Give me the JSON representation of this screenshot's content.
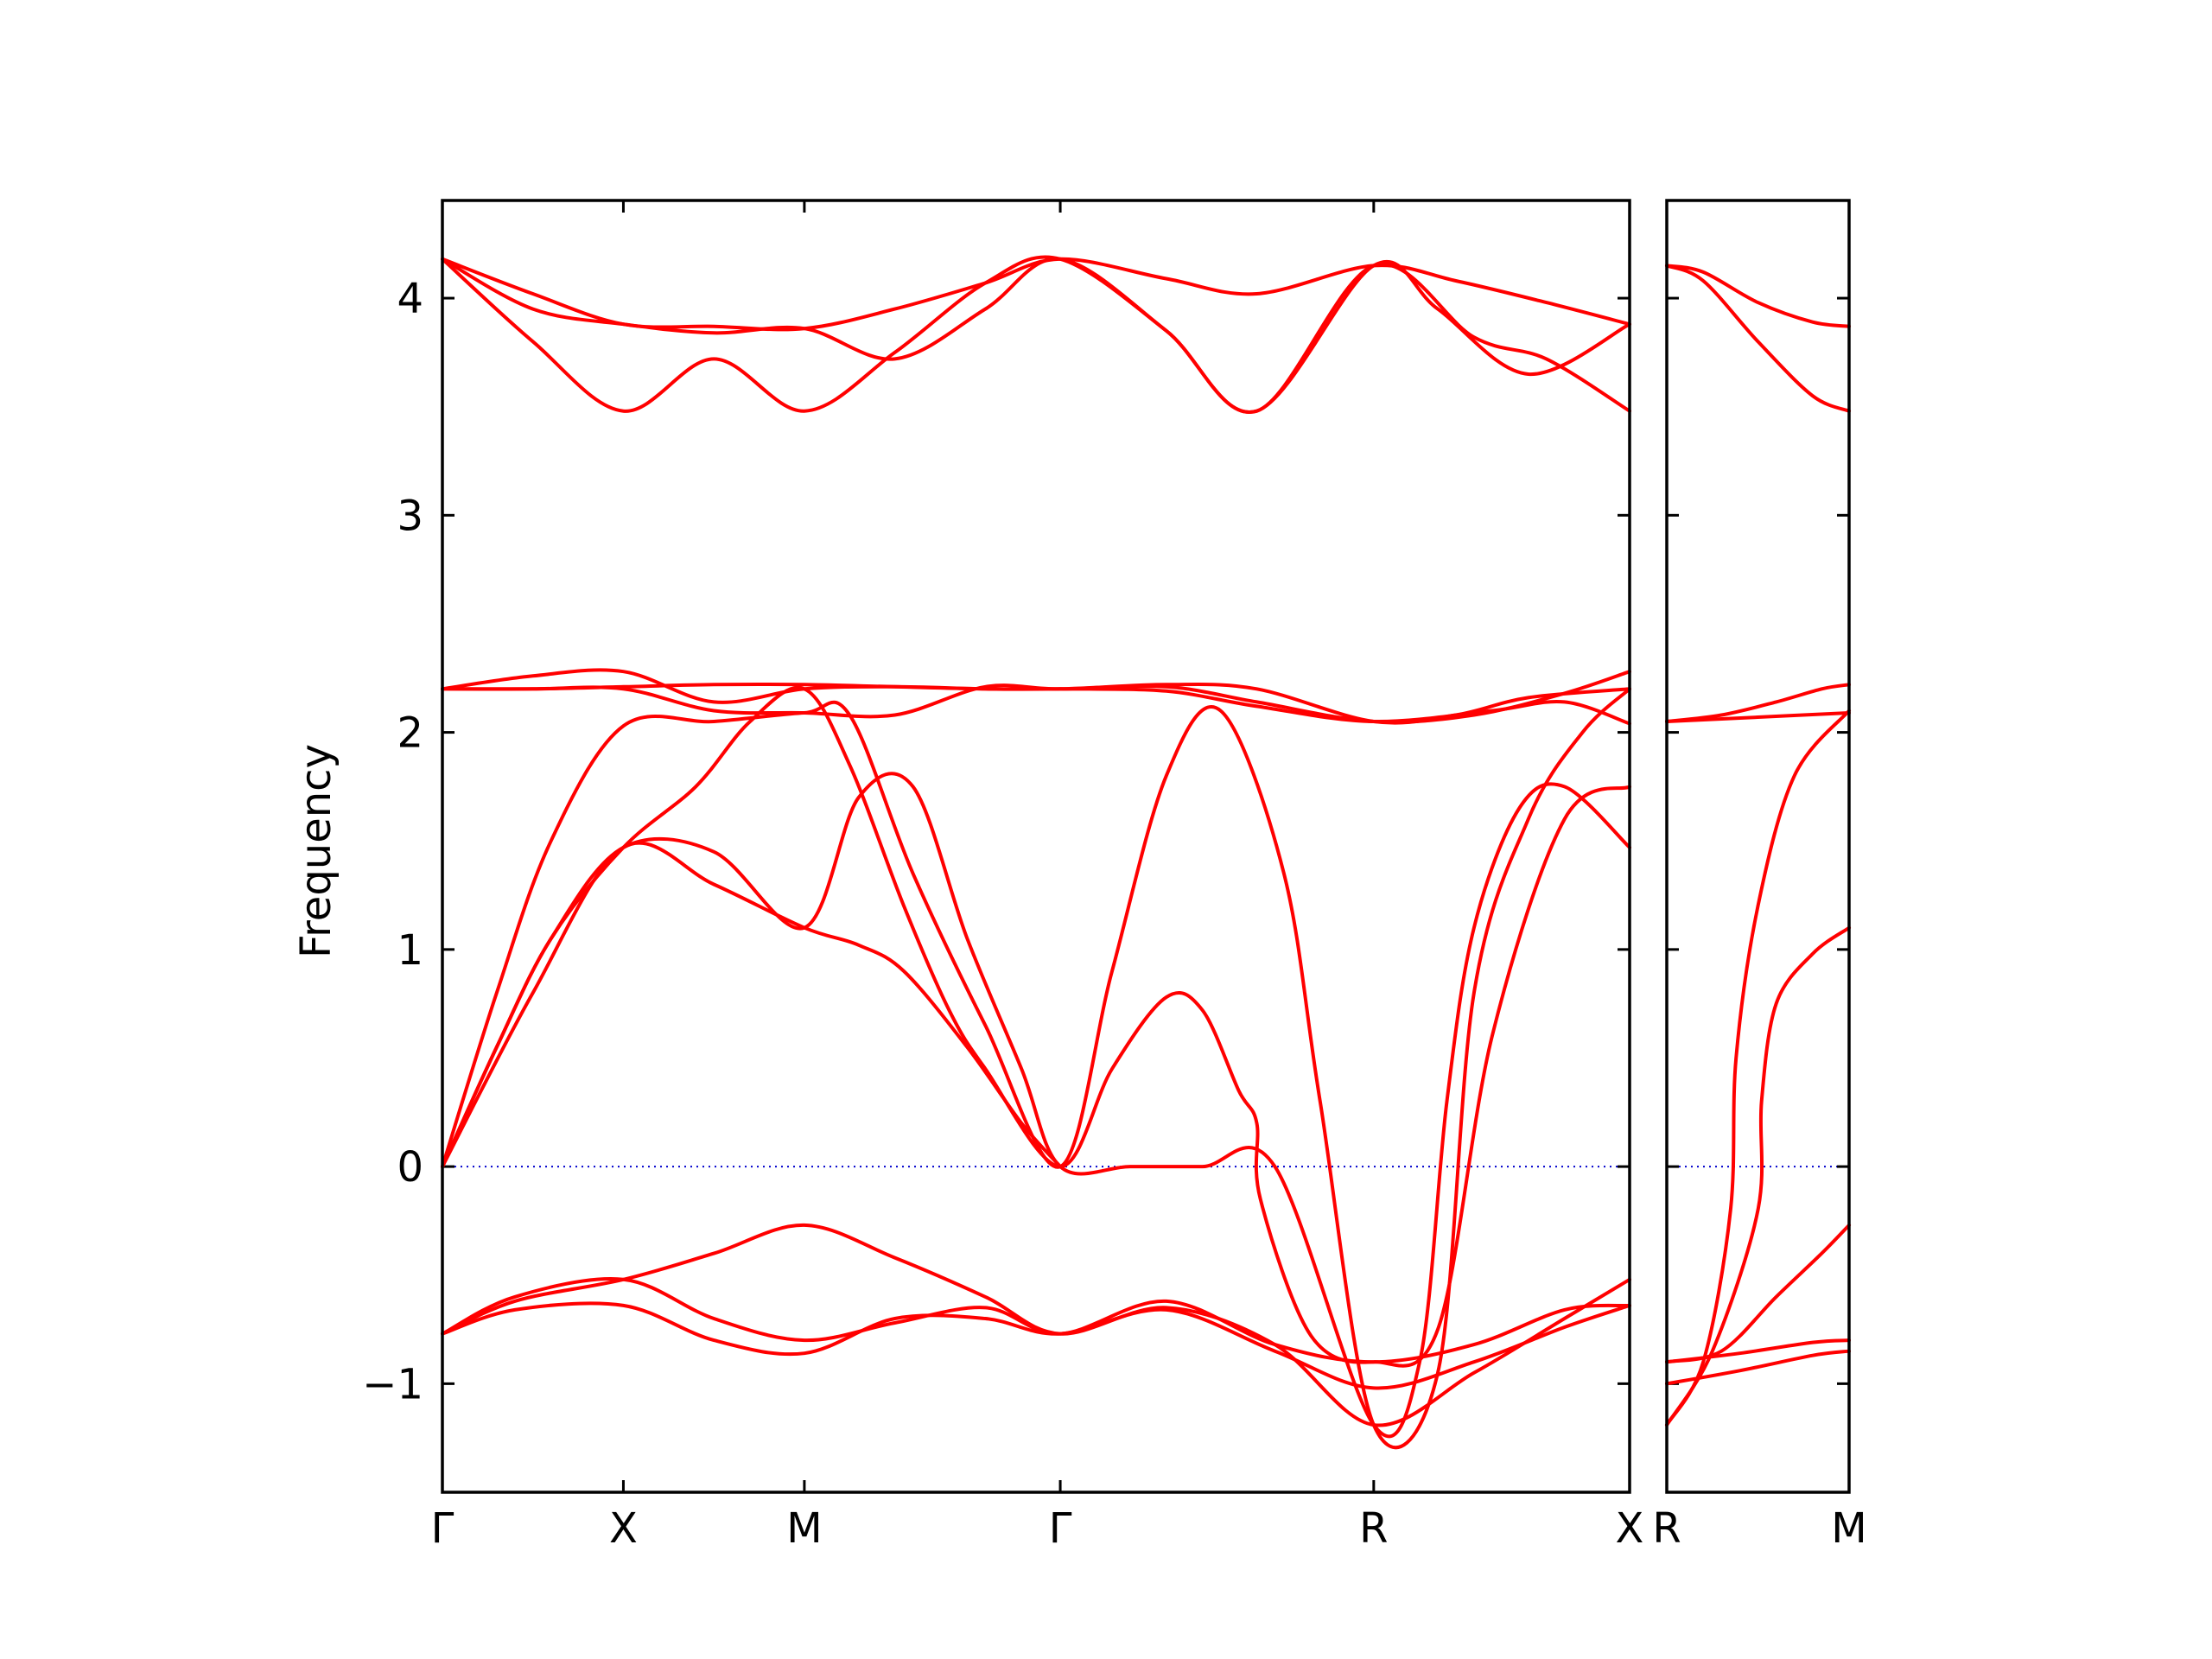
{
  "chart_data": {
    "type": "line",
    "title": "",
    "ylabel": "Frequency",
    "xlabel": "",
    "ylim": [
      -1.5,
      4.45
    ],
    "y_ticks": [
      -1,
      0,
      1,
      2,
      3,
      4
    ],
    "y_tick_labels": [
      "−1",
      "0",
      "1",
      "2",
      "3",
      "4"
    ],
    "grid": false,
    "legend": "none",
    "colors": {
      "bands": "#ff0000",
      "zero_line": "#0000cc"
    },
    "panels": [
      {
        "name": "main",
        "path_labels": [
          "Γ",
          "X",
          "M",
          "Γ",
          "R",
          "X"
        ],
        "path_positions": [
          0,
          1,
          2,
          3.414,
          5.146,
          6.56
        ],
        "xlim": [
          0,
          6.56
        ],
        "series": [
          {
            "x": [
              0,
              0.5,
              1,
              1.5,
              2,
              2.5,
              3,
              3.414,
              4,
              4.5,
              5.146,
              5.6,
              6.1,
              6.56
            ],
            "y": [
              4.18,
              4.02,
              3.88,
              3.87,
              3.86,
              3.95,
              4.07,
              4.18,
              4.09,
              4.02,
              4.15,
              4.08,
              3.98,
              3.88
            ]
          },
          {
            "x": [
              0,
              0.5,
              1,
              1.5,
              2,
              2.5,
              3,
              3.414,
              4,
              4.5,
              5.146,
              5.7,
              6.1,
              6.56
            ],
            "y": [
              4.18,
              3.95,
              3.88,
              3.84,
              3.86,
              3.72,
              3.95,
              4.18,
              3.85,
              3.48,
              4.15,
              3.82,
              3.72,
              3.48
            ]
          },
          {
            "x": [
              0,
              0.5,
              1,
              1.5,
              2,
              2.5,
              3,
              3.414,
              4,
              4.5,
              5.146,
              5.5,
              6.0,
              6.56
            ],
            "y": [
              4.18,
              3.8,
              3.48,
              3.72,
              3.48,
              3.75,
              4.07,
              4.18,
              3.85,
              3.48,
              4.15,
              3.95,
              3.65,
              3.88
            ]
          },
          {
            "x": [
              0,
              0.5,
              1,
              1.5,
              2,
              2.5,
              3,
              3.414,
              4,
              4.5,
              5.146,
              5.7,
              6.2,
              6.56
            ],
            "y": [
              2.2,
              2.26,
              2.28,
              2.14,
              2.2,
              2.21,
              2.2,
              2.2,
              2.21,
              2.14,
              2.05,
              2.08,
              2.18,
              2.28
            ]
          },
          {
            "x": [
              0,
              0.5,
              1,
              1.5,
              2,
              2.5,
              3,
              3.414,
              4,
              4.5,
              5.146,
              5.8,
              6.2,
              6.56
            ],
            "y": [
              2.2,
              2.2,
              2.21,
              2.22,
              2.22,
              2.21,
              2.2,
              2.2,
              2.19,
              2.12,
              2.05,
              2.1,
              2.14,
              2.04
            ]
          },
          {
            "x": [
              0,
              0.5,
              1,
              1.5,
              2,
              2.5,
              3,
              3.414,
              4,
              4.5,
              5.146,
              5.6,
              6.0,
              6.56
            ],
            "y": [
              2.2,
              2.2,
              2.2,
              2.1,
              2.09,
              2.08,
              2.21,
              2.2,
              2.22,
              2.2,
              2.05,
              2.08,
              2.16,
              2.2
            ]
          },
          {
            "x": [
              0,
              0.3,
              0.6,
              1,
              1.5,
              2,
              2.25,
              2.6,
              3,
              3.414,
              3.7,
              4.0,
              4.3,
              4.65,
              4.85,
              5.146,
              5.5,
              5.7,
              6.0,
              6.3,
              6.56
            ],
            "y": [
              0,
              0.8,
              1.5,
              2.03,
              2.05,
              2.09,
              2.08,
              1.35,
              0.65,
              0,
              0.9,
              1.8,
              2.1,
              1.35,
              0.3,
              -1.19,
              -0.95,
              0.8,
              1.6,
              2.0,
              2.2
            ]
          },
          {
            "x": [
              0,
              0.3,
              0.6,
              1,
              1.4,
              1.7,
              2,
              2.25,
              2.55,
              2.8,
              3,
              3.414,
              3.7,
              4.0,
              4.2,
              4.4,
              4.5,
              4.52,
              4.8,
              5.146,
              5.5,
              5.8,
              6.2,
              6.56
            ],
            "y": [
              0,
              0.55,
              1.05,
              1.47,
              1.75,
              2.05,
              2.2,
              1.85,
              1.2,
              0.72,
              0.45,
              0,
              0.45,
              0.78,
              0.72,
              0.35,
              0.2,
              -0.15,
              -0.78,
              -0.9,
              -0.75,
              0.6,
              1.6,
              1.75
            ]
          },
          {
            "x": [
              0,
              0.3,
              0.6,
              1,
              1.5,
              2,
              2.3,
              2.6,
              2.9,
              3.2,
              3.414,
              3.8,
              4.2,
              4.6,
              5.146,
              5.4,
              5.55,
              5.7,
              5.95,
              6.2,
              6.56
            ],
            "y": [
              0,
              0.55,
              1.05,
              1.47,
              1.45,
              1.1,
              1.7,
              1.75,
              1.05,
              0.45,
              0,
              0,
              0,
              0,
              -1.19,
              -0.9,
              0.3,
              1.1,
              1.65,
              1.75,
              1.47
            ]
          },
          {
            "x": [
              0,
              0.5,
              1,
              1.5,
              2,
              2.3,
              2.55,
              2.9,
              3.2,
              3.414
            ],
            "y": [
              0,
              0.8,
              1.47,
              1.3,
              1.1,
              1.02,
              0.9,
              0.55,
              0.2,
              0
            ]
          },
          {
            "x": [
              0,
              0.4,
              1,
              1.5,
              2,
              2.5,
              3,
              3.414,
              4.0,
              4.6,
              5.146,
              5.7,
              6.2,
              6.56
            ],
            "y": [
              -0.77,
              -0.62,
              -0.52,
              -0.4,
              -0.27,
              -0.42,
              -0.6,
              -0.77,
              -0.65,
              -0.82,
              -1.19,
              -0.95,
              -0.7,
              -0.52
            ]
          },
          {
            "x": [
              0,
              0.4,
              1,
              1.5,
              2,
              2.5,
              3,
              3.414,
              4.0,
              4.6,
              5.146,
              5.7,
              6.2,
              6.56
            ],
            "y": [
              -0.77,
              -0.6,
              -0.52,
              -0.7,
              -0.8,
              -0.72,
              -0.65,
              -0.77,
              -0.62,
              -0.82,
              -0.9,
              -0.82,
              -0.66,
              -0.64
            ]
          },
          {
            "x": [
              0,
              0.4,
              1,
              1.5,
              2,
              2.5,
              3,
              3.414,
              4.0,
              4.6,
              5.146,
              5.7,
              6.2,
              6.56
            ],
            "y": [
              -0.77,
              -0.66,
              -0.64,
              -0.8,
              -0.86,
              -0.7,
              -0.7,
              -0.77,
              -0.66,
              -0.85,
              -1.02,
              -0.9,
              -0.74,
              -0.64
            ]
          }
        ]
      },
      {
        "name": "side",
        "path_labels": [
          "R",
          "M"
        ],
        "path_positions": [
          0,
          1
        ],
        "xlim": [
          0,
          1
        ],
        "series": [
          {
            "x": [
              0,
              0.2,
              0.5,
              0.8,
              1
            ],
            "y": [
              4.15,
              4.12,
              3.98,
              3.89,
              3.87
            ]
          },
          {
            "x": [
              0,
              0.2,
              0.5,
              0.8,
              1
            ],
            "y": [
              4.15,
              4.08,
              3.8,
              3.55,
              3.48
            ]
          },
          {
            "x": [
              0,
              0.3,
              0.6,
              0.85,
              1
            ],
            "y": [
              2.05,
              2.08,
              2.14,
              2.2,
              2.22
            ]
          },
          {
            "x": [
              0,
              0.5,
              1
            ],
            "y": [
              2.05,
              2.07,
              2.09
            ]
          },
          {
            "x": [
              0,
              0.2,
              0.35,
              0.38,
              0.5,
              0.7,
              1
            ],
            "y": [
              -1.19,
              -0.9,
              -0.2,
              0.5,
              1.2,
              1.8,
              2.1
            ]
          },
          {
            "x": [
              0,
              0.25,
              0.5,
              0.52,
              0.6,
              0.8,
              1
            ],
            "y": [
              -1.19,
              -0.85,
              -0.2,
              0.3,
              0.75,
              0.98,
              1.1
            ]
          },
          {
            "x": [
              0,
              0.3,
              0.6,
              0.85,
              1
            ],
            "y": [
              -0.9,
              -0.85,
              -0.6,
              -0.4,
              -0.27
            ]
          },
          {
            "x": [
              0,
              0.4,
              0.8,
              1
            ],
            "y": [
              -0.9,
              -0.86,
              -0.81,
              -0.8
            ]
          },
          {
            "x": [
              0,
              0.4,
              0.8,
              1
            ],
            "y": [
              -1.0,
              -0.94,
              -0.87,
              -0.85
            ]
          }
        ]
      }
    ]
  }
}
